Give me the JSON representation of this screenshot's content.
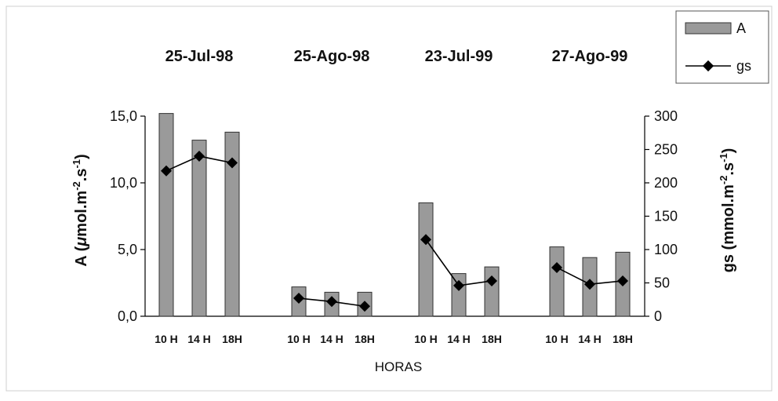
{
  "chart_data": {
    "type": "bar",
    "groups": [
      {
        "title": "25-Jul-98",
        "categories": [
          "10 H",
          "14 H",
          "18H"
        ]
      },
      {
        "title": "25-Ago-98",
        "categories": [
          "10 H",
          "14 H",
          "18H"
        ]
      },
      {
        "title": "23-Jul-99",
        "categories": [
          "10 H",
          "14 H",
          "18H"
        ]
      },
      {
        "title": "27-Ago-99",
        "categories": [
          "10 H",
          "14 H",
          "18H"
        ]
      }
    ],
    "series": [
      {
        "name": "A",
        "kind": "bar",
        "axis": "left",
        "values": [
          [
            15.2,
            13.2,
            13.8
          ],
          [
            2.2,
            1.8,
            1.8
          ],
          [
            8.5,
            3.2,
            3.7
          ],
          [
            5.2,
            4.4,
            4.8
          ]
        ]
      },
      {
        "name": "gs",
        "kind": "line",
        "axis": "right",
        "values": [
          [
            218,
            240,
            230
          ],
          [
            27,
            22,
            15
          ],
          [
            115,
            46,
            53
          ],
          [
            73,
            48,
            53
          ]
        ]
      }
    ],
    "xlabel": "HORAS",
    "ylabel_left": {
      "pre": "A (",
      "mu": "μ",
      "mid": "mol.m",
      "sup1": "-2",
      "dot": ".s",
      "sup2": "-1",
      "post": ")"
    },
    "ylabel_right": {
      "pre": "gs (mmol.m",
      "sup1": "-2",
      "dot": ".s",
      "sup2": "-1",
      "post": ")"
    },
    "ylim_left": [
      0,
      15
    ],
    "yticks_left": [
      "0,0",
      "5,0",
      "10,0",
      "15,0"
    ],
    "yticks_left_values": [
      0,
      5,
      10,
      15
    ],
    "ylim_right": [
      0,
      300
    ],
    "yticks_right": [
      "0",
      "50",
      "100",
      "150",
      "200",
      "250",
      "300"
    ],
    "yticks_right_values": [
      0,
      50,
      100,
      150,
      200,
      250,
      300
    ],
    "grid": false,
    "legend_position": "top-right",
    "colors": {
      "bar_fill": "#9a9a9a",
      "bar_stroke": "#333333",
      "line": "#000000",
      "frame": "#cfcfcf"
    }
  }
}
